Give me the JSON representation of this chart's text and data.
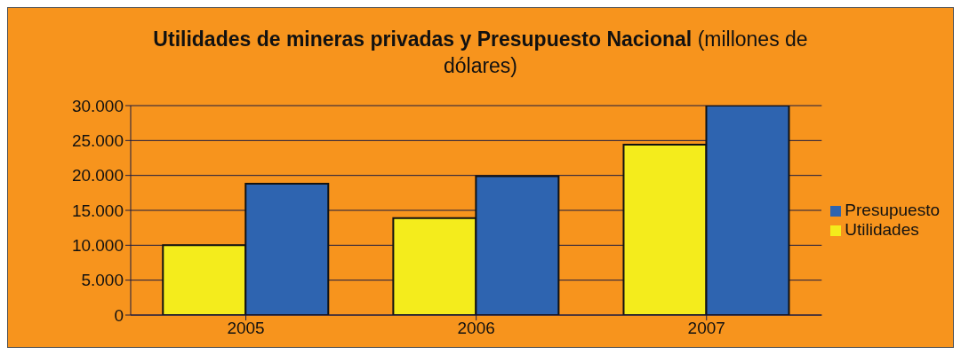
{
  "chart_data": {
    "type": "bar",
    "title": "Utilidades de mineras privadas y Presupuesto Nacional",
    "subtitle": "(millones de dólares)",
    "categories": [
      "2005",
      "2006",
      "2007"
    ],
    "series": [
      {
        "name": "Utilidades",
        "color": "#f4ec1c",
        "values": [
          10000,
          13900,
          24400
        ]
      },
      {
        "name": "Presupuesto",
        "color": "#2e64b0",
        "values": [
          18800,
          19900,
          30000
        ]
      }
    ],
    "ylim": [
      0,
      30000
    ],
    "yticks": [
      {
        "value": 0,
        "label": "0"
      },
      {
        "value": 5000,
        "label": "5.000"
      },
      {
        "value": 10000,
        "label": "10.000"
      },
      {
        "value": 15000,
        "label": "15.000"
      },
      {
        "value": 20000,
        "label": "20.000"
      },
      {
        "value": 25000,
        "label": "25.000"
      },
      {
        "value": 30000,
        "label": "30.000"
      }
    ],
    "grid": "y",
    "legend": "right"
  }
}
